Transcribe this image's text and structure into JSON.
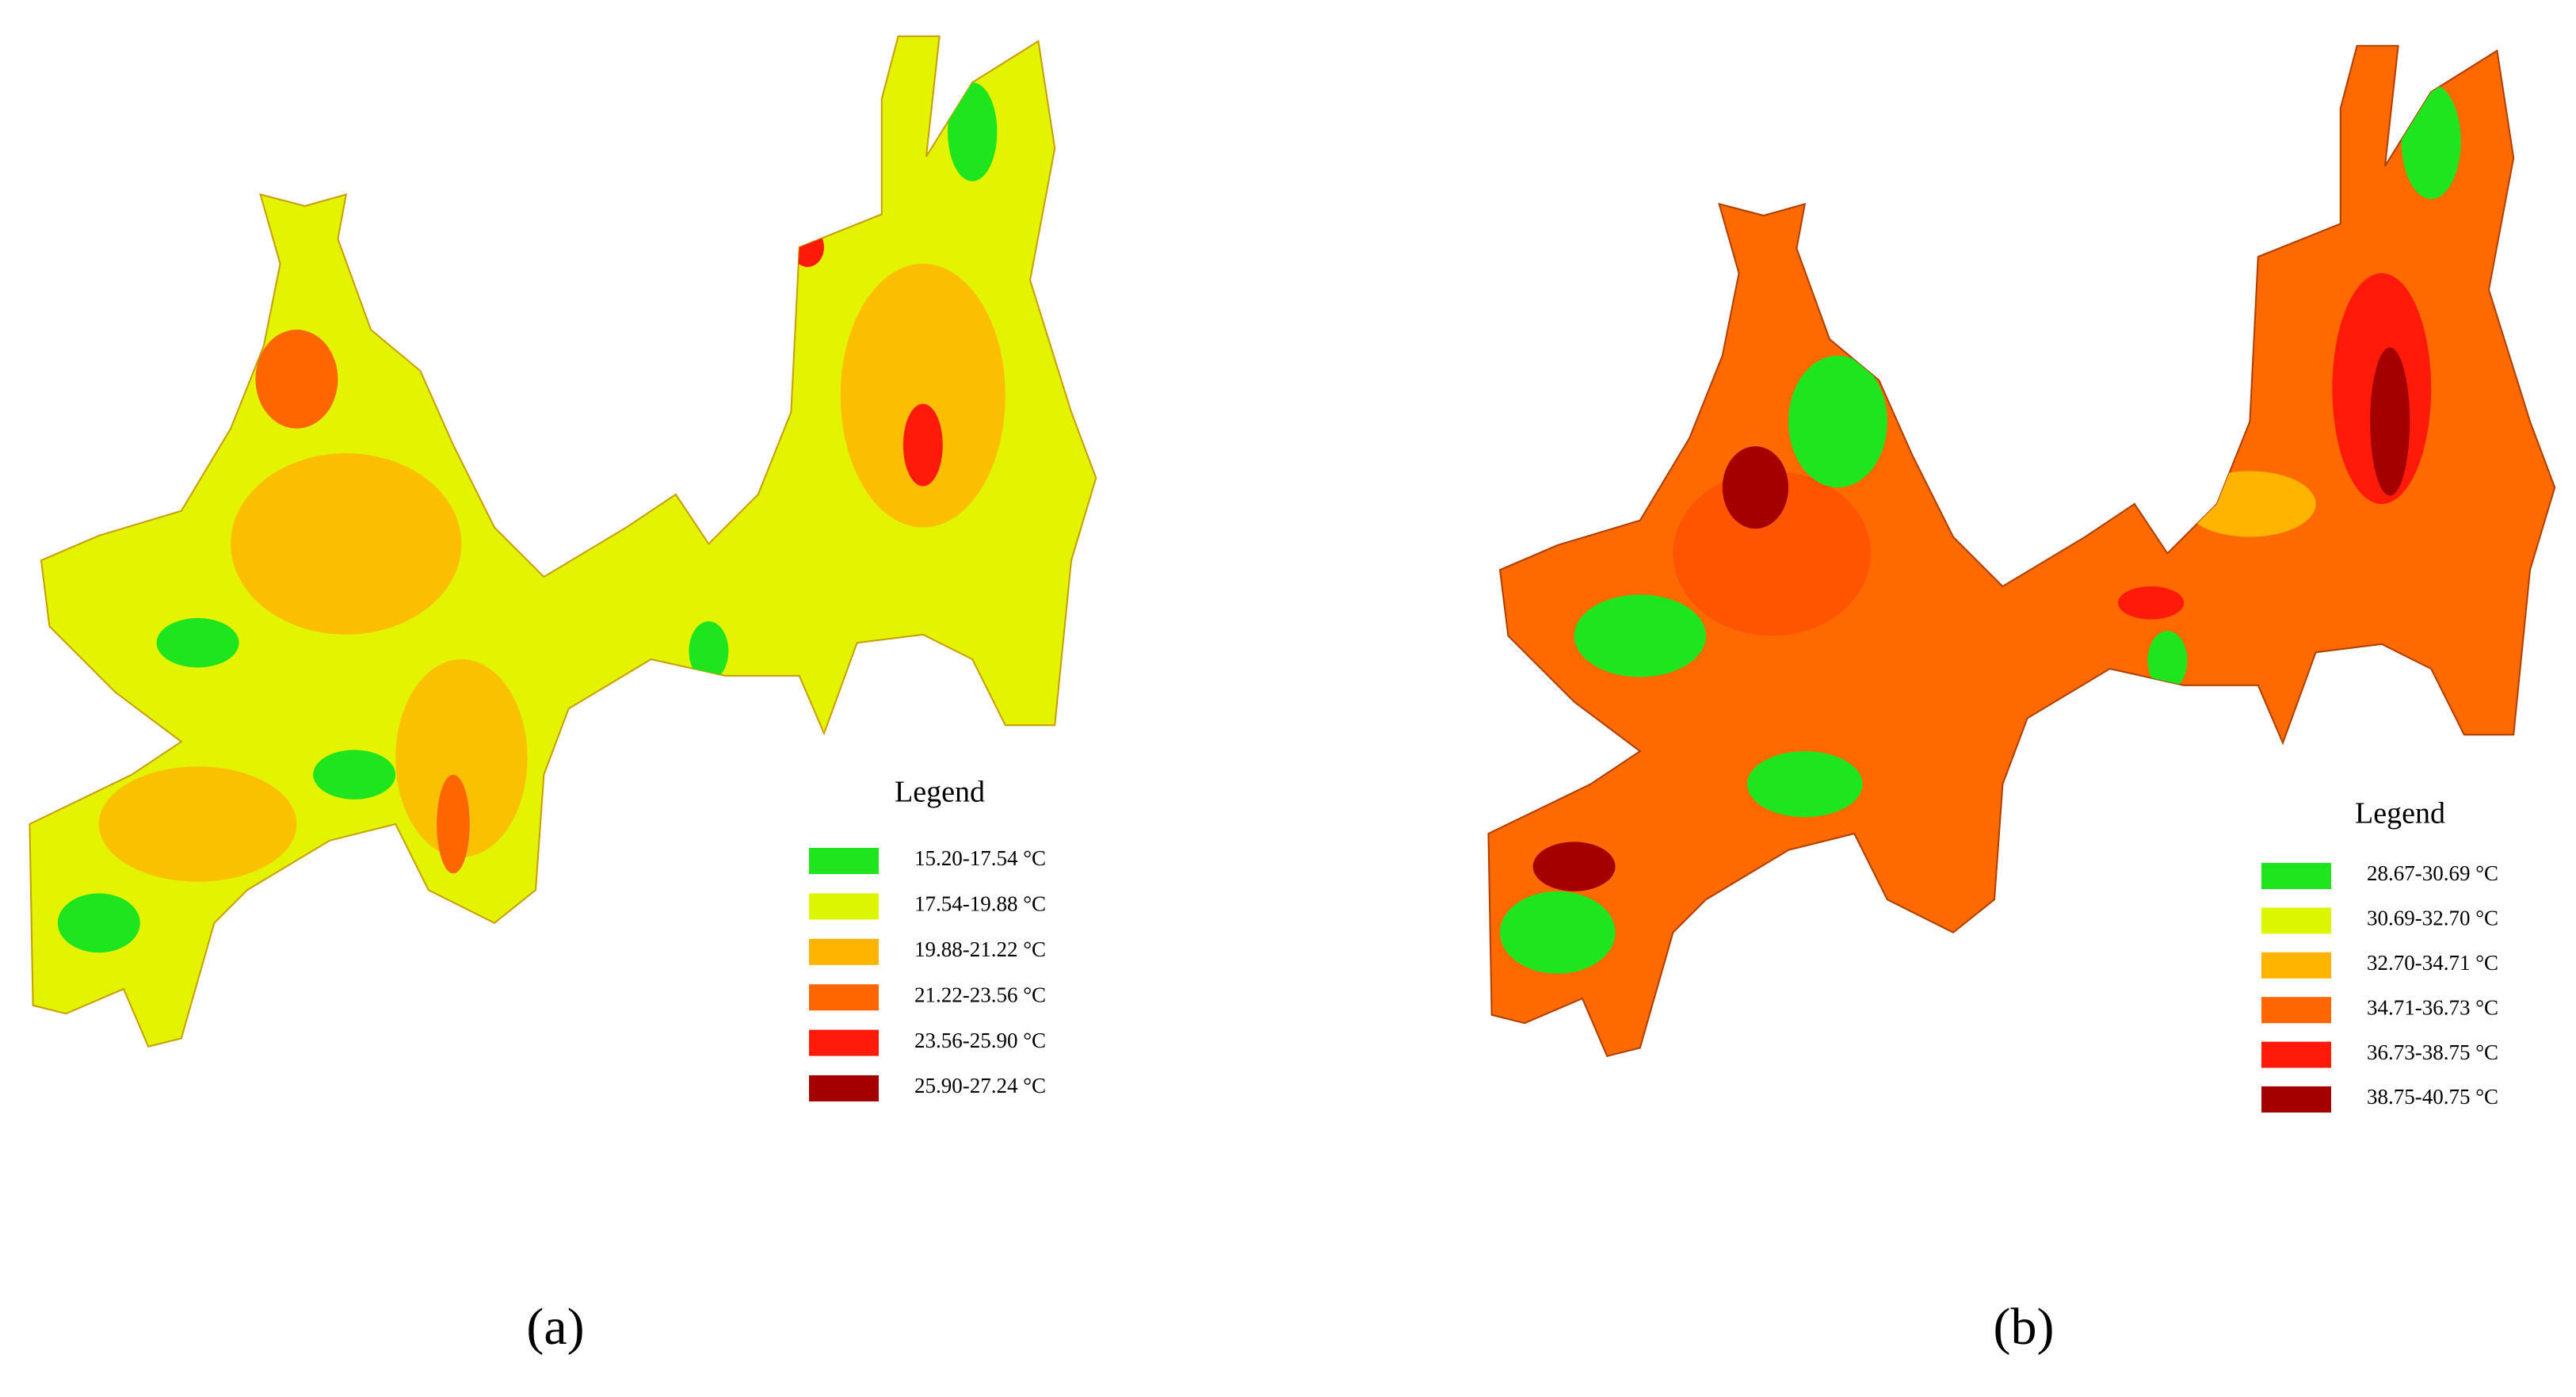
{
  "panels": [
    {
      "label": "(a)",
      "legend": {
        "title": "Legend",
        "items": [
          {
            "label": "15.20-17.54 °C",
            "color": "#1fe51f"
          },
          {
            "label": "17.54-19.88 °C",
            "color": "#dcf500"
          },
          {
            "label": "19.88-21.22 °C",
            "color": "#ffb400"
          },
          {
            "label": "21.22-23.56 °C",
            "color": "#ff6600"
          },
          {
            "label": "23.56-25.90 °C",
            "color": "#ff1a0a"
          },
          {
            "label": "25.90-27.24 °C",
            "color": "#a50000"
          }
        ]
      }
    },
    {
      "label": "(b)",
      "legend": {
        "title": "Legend",
        "items": [
          {
            "label": "28.67-30.69 °C",
            "color": "#1fe51f"
          },
          {
            "label": "30.69-32.70 °C",
            "color": "#dcf500"
          },
          {
            "label": "32.70-34.71 °C",
            "color": "#ffb400"
          },
          {
            "label": "34.71-36.73 °C",
            "color": "#ff6600"
          },
          {
            "label": "36.73-38.75 °C",
            "color": "#ff1a0a"
          },
          {
            "label": "38.75-40.75 °C",
            "color": "#a50000"
          }
        ]
      }
    }
  ]
}
